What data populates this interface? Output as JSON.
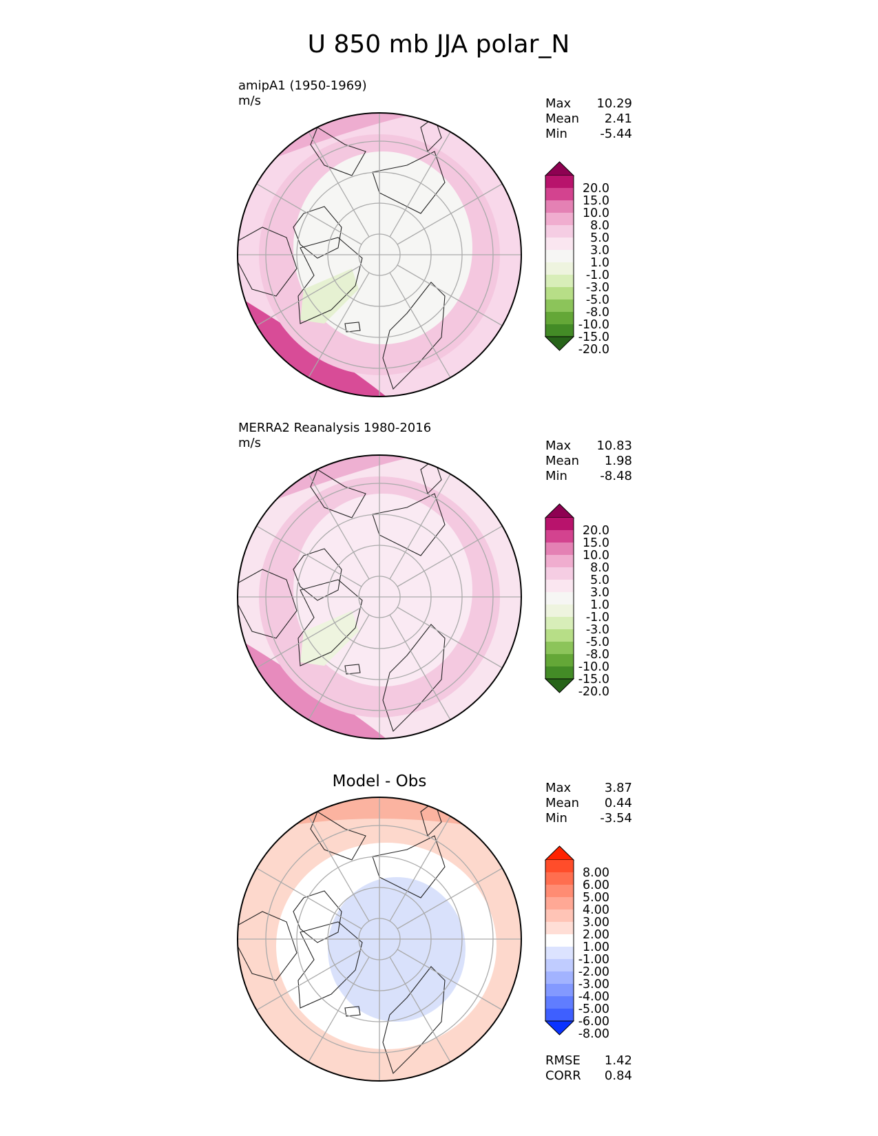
{
  "title": "U 850 mb JJA polar_N",
  "stat_labels": {
    "max": "Max",
    "mean": "Mean",
    "min": "Min",
    "rmse": "RMSE",
    "corr": "CORR"
  },
  "panels": [
    {
      "id": "model",
      "label": "amipA1 (1950-1969)",
      "units": "m/s",
      "centered_title": "",
      "stats": {
        "max": "10.29",
        "mean": "2.41",
        "min": "-5.44"
      },
      "colorbar": {
        "labels": [
          "20.0",
          "15.0",
          "10.0",
          "8.0",
          "5.0",
          "3.0",
          "1.0",
          "-1.0",
          "-3.0",
          "-5.0",
          "-8.0",
          "-10.0",
          "-15.0",
          "-20.0"
        ],
        "colors": [
          "#8e0152",
          "#b8136c",
          "#d3438f",
          "#e481b4",
          "#f0adcf",
          "#f5cde3",
          "#fae6f0",
          "#f6f6f4",
          "#eef4df",
          "#d8eeb9",
          "#b7de87",
          "#8cc45a",
          "#64a737",
          "#438b26",
          "#276419"
        ]
      },
      "field": {
        "base": "#f8d8ea",
        "zones": [
          {
            "name": "pole-neutral",
            "color": "#f6f6f4"
          },
          {
            "name": "mid-lat-pink",
            "color": "#f4c7df"
          },
          {
            "name": "jet-pink",
            "color": "#eeadd0"
          },
          {
            "name": "jet-core",
            "color": "#d84c97"
          },
          {
            "name": "green-negative",
            "color": "#e6f1d2"
          }
        ]
      }
    },
    {
      "id": "obs",
      "label": "MERRA2 Reanalysis 1980-2016",
      "units": "m/s",
      "centered_title": "",
      "stats": {
        "max": "10.83",
        "mean": "1.98",
        "min": "-8.48"
      },
      "colorbar": {
        "labels": [
          "20.0",
          "15.0",
          "10.0",
          "8.0",
          "5.0",
          "3.0",
          "1.0",
          "-1.0",
          "-3.0",
          "-5.0",
          "-8.0",
          "-10.0",
          "-15.0",
          "-20.0"
        ],
        "colors": [
          "#8e0152",
          "#b8136c",
          "#d3438f",
          "#e481b4",
          "#f0adcf",
          "#f5cde3",
          "#fae6f0",
          "#f6f6f4",
          "#eef4df",
          "#d8eeb9",
          "#b7de87",
          "#8cc45a",
          "#64a737",
          "#438b26",
          "#276419"
        ]
      },
      "field": {
        "base": "#f9e4ef",
        "zones": [
          {
            "name": "pole-neutral",
            "color": "#faeaf3"
          },
          {
            "name": "mid-lat-pink",
            "color": "#f4c9e0"
          },
          {
            "name": "jet-pink",
            "color": "#eeb0d2"
          },
          {
            "name": "jet-core",
            "color": "#e78bbd"
          },
          {
            "name": "green-negative",
            "color": "#eef4df"
          }
        ]
      }
    },
    {
      "id": "diff",
      "label": "",
      "units": "",
      "centered_title": "Model - Obs",
      "stats": {
        "max": "3.87",
        "mean": "0.44",
        "min": "-3.54"
      },
      "extra_stats": {
        "rmse": "1.42",
        "corr": "0.84"
      },
      "colorbar": {
        "labels": [
          "8.00",
          "6.00",
          "5.00",
          "4.00",
          "3.00",
          "2.00",
          "1.00",
          "-1.00",
          "-2.00",
          "-3.00",
          "-4.00",
          "-5.00",
          "-6.00",
          "-8.00"
        ],
        "colors": [
          "#ff2200",
          "#ff4d2a",
          "#ff6e4f",
          "#ff8c73",
          "#ffa895",
          "#ffc4b6",
          "#ffded6",
          "#ffffff",
          "#dce3ff",
          "#c0ccff",
          "#a2b3ff",
          "#8399ff",
          "#607dff",
          "#3e5fff",
          "#0a33ff"
        ]
      },
      "field": {
        "base": "#ffffff",
        "zones": [
          {
            "name": "pole-negative",
            "color": "#d9e1fb"
          },
          {
            "name": "mid-lat-positive",
            "color": "#fdd8cc"
          },
          {
            "name": "strong-positive",
            "color": "#fbb3a0"
          },
          {
            "name": "neutral-band",
            "color": "#ffffff"
          }
        ]
      }
    }
  ]
}
